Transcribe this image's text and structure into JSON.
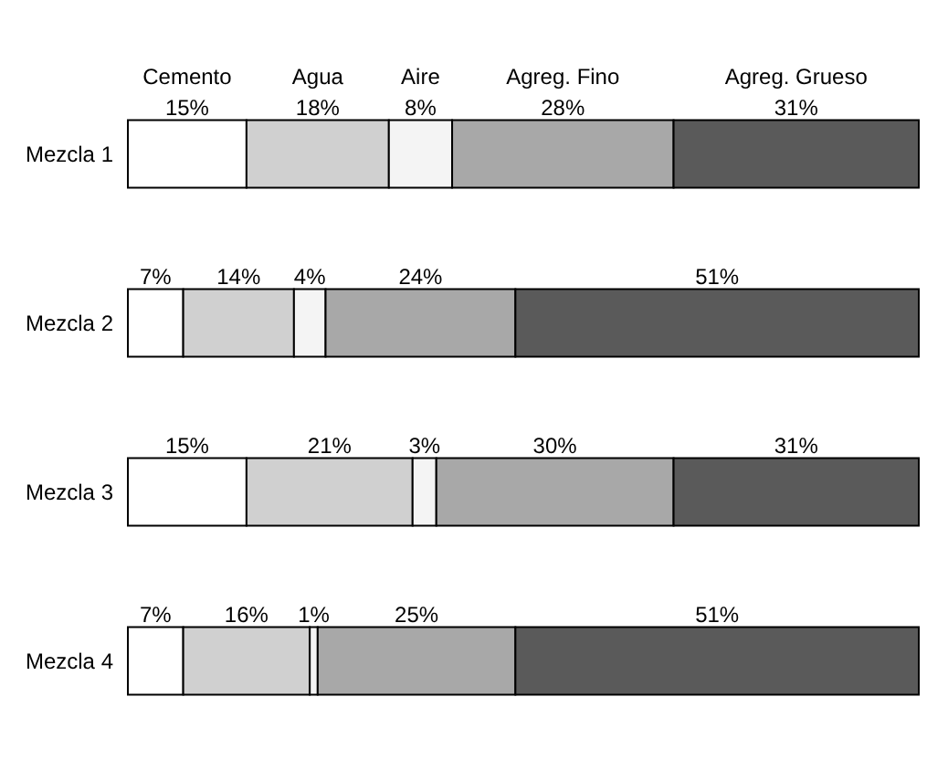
{
  "chart_data": {
    "type": "bar",
    "orientation": "horizontal",
    "stacked": true,
    "categories": [
      "Mezcla 1",
      "Mezcla 2",
      "Mezcla 3",
      "Mezcla 4"
    ],
    "series": [
      {
        "name": "Cemento",
        "color": "#ffffff",
        "values": [
          15,
          7,
          15,
          7
        ],
        "value_labels": [
          "15%",
          "7%",
          "15%",
          "7%"
        ]
      },
      {
        "name": "Agua",
        "color": "#d0d0d0",
        "values": [
          18,
          14,
          21,
          16
        ],
        "value_labels": [
          "18%",
          "14%",
          "21%",
          "16%"
        ]
      },
      {
        "name": "Aire",
        "color": "#f4f4f4",
        "values": [
          8,
          4,
          3,
          1
        ],
        "value_labels": [
          "8%",
          "4%",
          "3%",
          "1%"
        ]
      },
      {
        "name": "Agreg. Fino",
        "color": "#a8a8a8",
        "values": [
          28,
          24,
          30,
          25
        ],
        "value_labels": [
          "28%",
          "24%",
          "30%",
          "25%"
        ]
      },
      {
        "name": "Agreg. Grueso",
        "color": "#5a5a5a",
        "values": [
          31,
          51,
          31,
          51
        ],
        "value_labels": [
          "31%",
          "51%",
          "31%",
          "51%"
        ]
      }
    ]
  }
}
